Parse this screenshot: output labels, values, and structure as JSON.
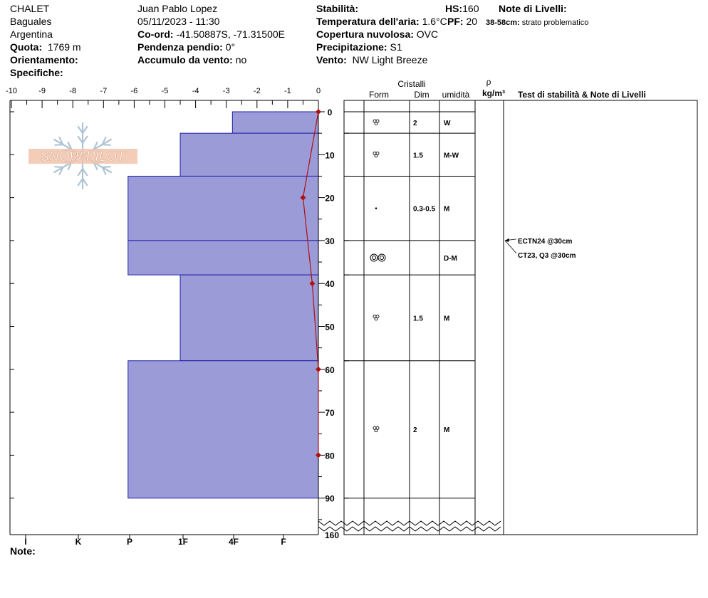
{
  "header": {
    "location_name": "CHALET",
    "region": "Baguales",
    "country": "Argentina",
    "elevation_label": "Quota:",
    "elevation_value": "1769 m",
    "aspect_label": "Orientamento:",
    "specifics_label": "Specifiche:",
    "observer": "Juan Pablo  Lopez",
    "datetime": "05/11/2023 - 11:30",
    "coord_label": "Co-ord:",
    "coord_value": "-41.50887S, -71.31500E",
    "slope_label": "Pendenza pendio:",
    "slope_value": "0°",
    "wind_load_label": "Accumulo da vento:",
    "wind_load_value": "no",
    "stability_label": "Stabilità:",
    "air_temp_label": "Temperatura dell'aria:",
    "air_temp_value": "1.6°C",
    "cloud_label": "Copertura nuvolosa:",
    "cloud_value": "OVC",
    "precip_label": "Precipitazione:",
    "precip_value": "S1",
    "wind_label": "Vento:",
    "wind_value": "NW Light Breeze",
    "hs_label": "HS:",
    "hs_value": "160",
    "pf_label": "PF:",
    "pf_value": "20",
    "layer_notes_label": "Note di Livelli:",
    "layer_note_range": "38-58cm:",
    "layer_note_text": "strato problematico"
  },
  "logo_text": "SNOW PILOT",
  "note_label": "Note:",
  "columns": {
    "crystals": "Cristalli",
    "form": "Form",
    "dim": "Dim",
    "moisture": "umidità",
    "rho": "ρ",
    "density_unit": "kg/m³",
    "stability_notes": "Test di stabilità & Note di Livelli"
  },
  "chart_data": {
    "type": "snow_profile",
    "temperature_axis": {
      "ticks": [
        -10,
        -9,
        -8,
        -7,
        -6,
        -5,
        -4,
        -3,
        -2,
        -1,
        0
      ],
      "range": [
        -10,
        0
      ]
    },
    "depth_axis": {
      "ticks": [
        0,
        10,
        20,
        30,
        40,
        50,
        60,
        70,
        80,
        90
      ],
      "range": [
        0,
        100
      ],
      "total_label": "160"
    },
    "hardness_axis": {
      "labels": [
        "I",
        "K",
        "P",
        "1F",
        "4F",
        "F"
      ]
    },
    "hardness_layers": [
      {
        "top": 0,
        "bottom": 5,
        "temp_extent": -2.8
      },
      {
        "top": 5,
        "bottom": 15,
        "temp_extent": -4.5
      },
      {
        "top": 15,
        "bottom": 30,
        "temp_extent": -6.2
      },
      {
        "top": 30,
        "bottom": 38,
        "temp_extent": -6.2
      },
      {
        "top": 38,
        "bottom": 58,
        "temp_extent": -4.5
      },
      {
        "top": 58,
        "bottom": 90,
        "temp_extent": -6.2
      }
    ],
    "temperature_profile": [
      {
        "depth": 0,
        "temp": 0
      },
      {
        "depth": 20,
        "temp": -0.5
      },
      {
        "depth": 40,
        "temp": -0.2
      },
      {
        "depth": 60,
        "temp": 0
      },
      {
        "depth": 80,
        "temp": 0
      }
    ],
    "layer_details": [
      {
        "top": 0,
        "bottom": 5,
        "form": "rounded",
        "dim": "2",
        "moisture": "W"
      },
      {
        "top": 5,
        "bottom": 15,
        "form": "rounded",
        "dim": "1.5",
        "moisture": "M-W"
      },
      {
        "top": 15,
        "bottom": 30,
        "form": "dot",
        "dim": "0.3-0.5",
        "moisture": "M"
      },
      {
        "top": 30,
        "bottom": 38,
        "form": "melt-freeze",
        "dim": "",
        "moisture": "D-M"
      },
      {
        "top": 38,
        "bottom": 58,
        "form": "rounded",
        "dim": "1.5",
        "moisture": "M"
      },
      {
        "top": 58,
        "bottom": 90,
        "form": "rounded",
        "dim": "2",
        "moisture": "M"
      }
    ],
    "stability_tests": [
      {
        "depth": 30,
        "label": "ECTN24 @30cm"
      },
      {
        "depth": 30,
        "label": "CT23, Q3 @30cm"
      }
    ]
  }
}
